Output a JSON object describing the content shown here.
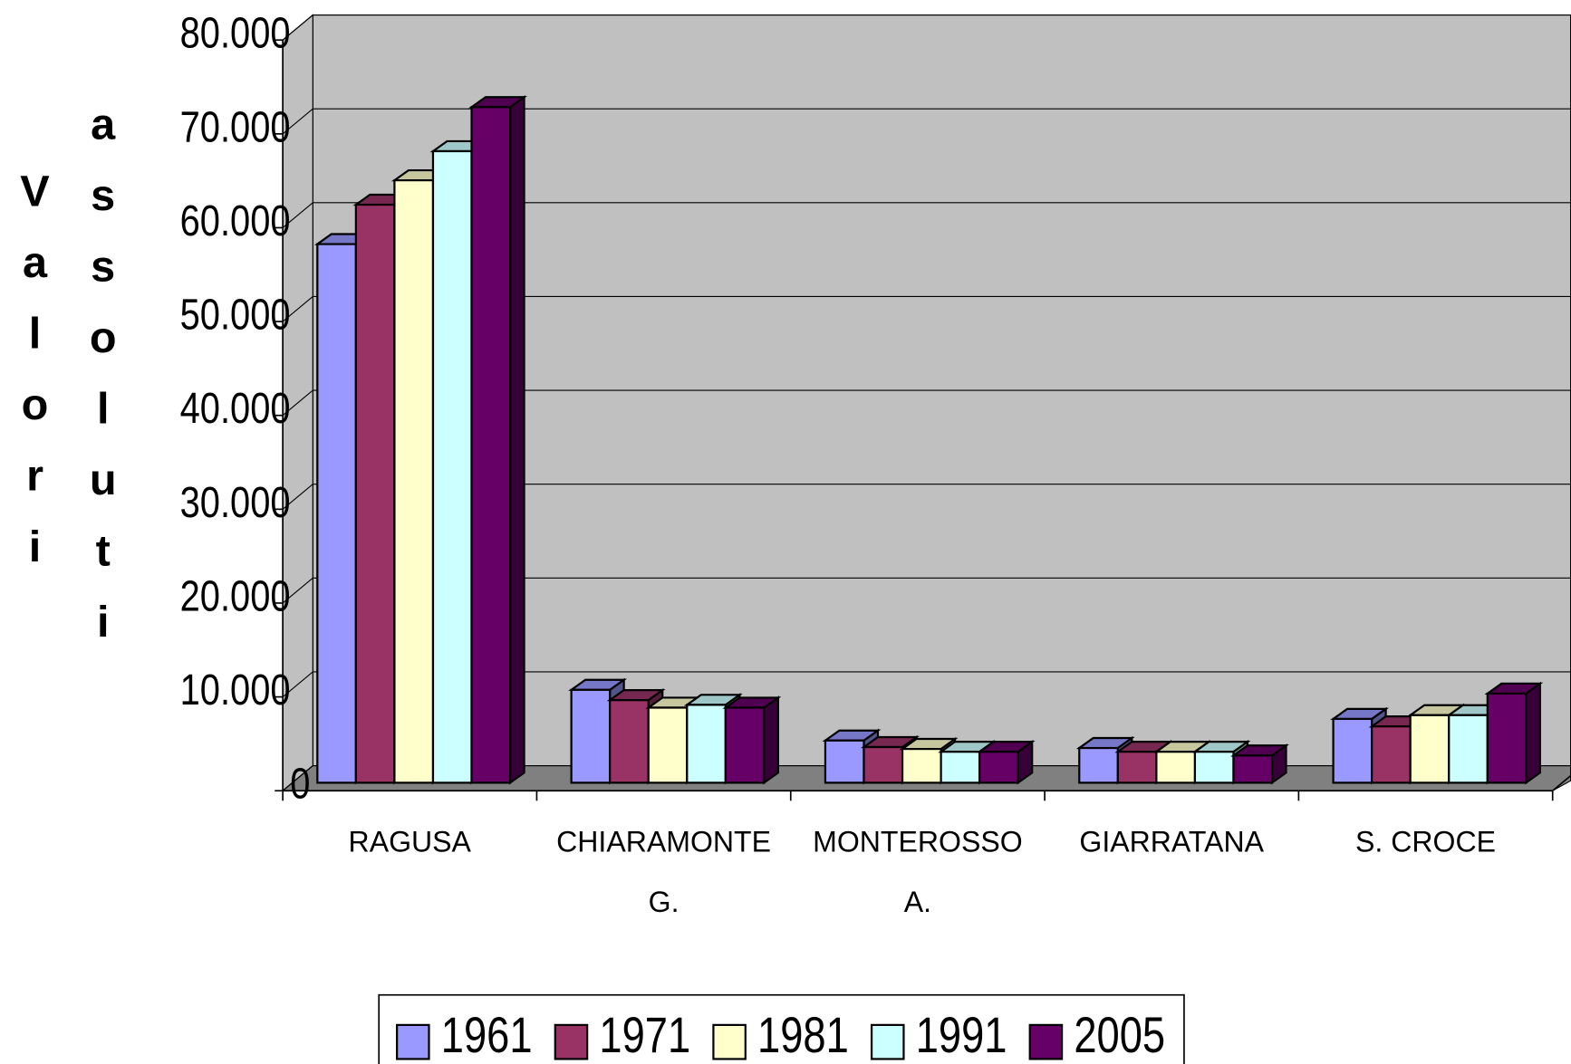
{
  "chart_data": {
    "type": "bar3d",
    "y_label": "Valori assoluti",
    "categories": [
      "RAGUSA",
      "CHIARAMONTE G.",
      "MONTEROSSO A.",
      "GIARRATANA",
      "S. CROCE"
    ],
    "series": [
      {
        "name": "1961",
        "color": "#9999ff",
        "values": [
          57400,
          9900,
          4500,
          3700,
          6800
        ]
      },
      {
        "name": "1971",
        "color": "#993366",
        "values": [
          61600,
          8800,
          3800,
          3300,
          6000
        ]
      },
      {
        "name": "1981",
        "color": "#ffffcc",
        "values": [
          64200,
          8000,
          3600,
          3300,
          7200
        ]
      },
      {
        "name": "1991",
        "color": "#ccffff",
        "values": [
          67300,
          8300,
          3300,
          3300,
          7200
        ]
      },
      {
        "name": "2005",
        "color": "#660066",
        "values": [
          72000,
          8000,
          3300,
          2900,
          9500
        ]
      }
    ],
    "ylim": [
      0,
      80000
    ],
    "yticks": [
      0,
      {
        "value": 10000,
        "label": "10.000"
      },
      {
        "value": 20000,
        "label": "20.000"
      },
      {
        "value": 30000,
        "label": "30.000"
      },
      {
        "value": 40000,
        "label": "40.000"
      },
      {
        "value": 50000,
        "label": "50.000"
      },
      {
        "value": 60000,
        "label": "60.000"
      },
      {
        "value": 70000,
        "label": "70.000"
      },
      {
        "value": 80000,
        "label": "80.000"
      }
    ],
    "grid": true,
    "legend": "bottom"
  }
}
